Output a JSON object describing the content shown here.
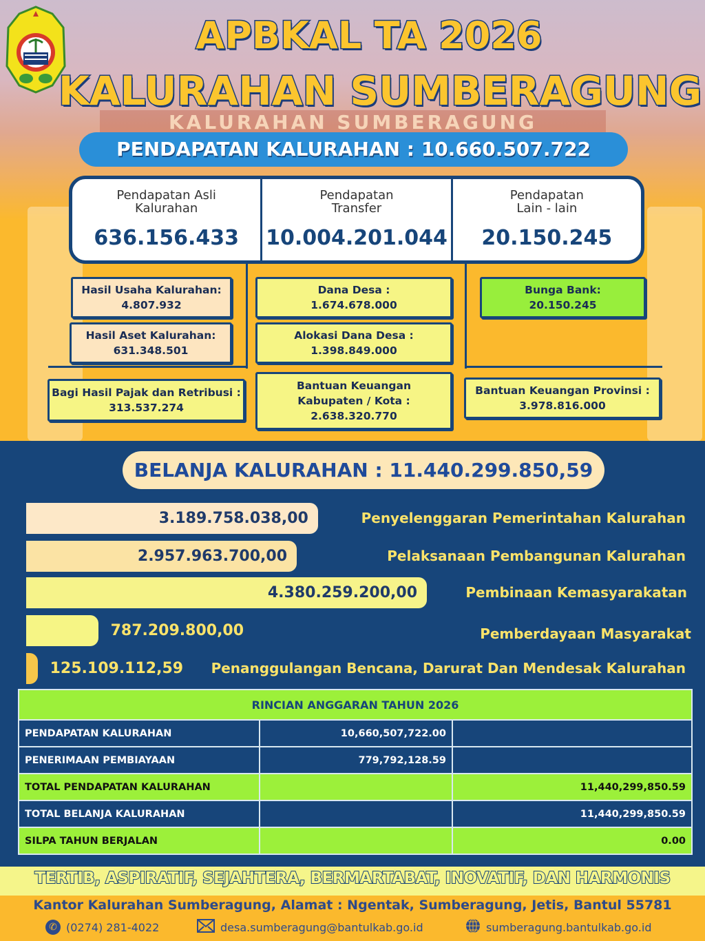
{
  "header": {
    "title_line1": "APBKAL TA 2026",
    "title_line2": "KALURAHAN SUMBERAGUNG",
    "building_sign": "KALURAHAN SUMBERAGUNG"
  },
  "pendapatan": {
    "total_label": "PENDAPATAN KALURAHAN : 10.660.507.722",
    "categories": [
      {
        "label": "Pendapatan Asli\nKalurahan",
        "value": "636.156.433"
      },
      {
        "label": "Pendapatan\nTransfer",
        "value": "10.004.201.044"
      },
      {
        "label": "Pendapatan\nLain - lain",
        "value": "20.150.245"
      }
    ],
    "details": [
      {
        "label": "Hasil Usaha Kalurahan:",
        "value": "4.807.932"
      },
      {
        "label": "Hasil Aset Kalurahan:",
        "value": "631.348.501"
      },
      {
        "label": "Bagi Hasil Pajak dan Retribusi :",
        "value": "313.537.274"
      },
      {
        "label": "Dana Desa :",
        "value": "1.674.678.000"
      },
      {
        "label": "Alokasi Dana Desa :",
        "value": "1.398.849.000"
      },
      {
        "label": "Bantuan Keuangan Kabupaten / Kota :",
        "value": "2.638.320.770"
      },
      {
        "label": "Bunga Bank:",
        "value": "20.150.245"
      },
      {
        "label": "Bantuan Keuangan Provinsi :",
        "value": "3.978.816.000"
      }
    ]
  },
  "belanja": {
    "total_label": "BELANJA KALURAHAN : 11.440.299.850,59",
    "items": [
      {
        "label": "Penyelenggaran Pemerintahan Kalurahan",
        "value_text": "3.189.758.038,00",
        "value": 3189758038.0,
        "color": "#fde8c8"
      },
      {
        "label": "Pelaksanaan Pembangunan Kalurahan",
        "value_text": "2.957.963.700,00",
        "value": 2957963700.0,
        "color": "#fbe3a4"
      },
      {
        "label": "Pembinaan Kemasyarakatan",
        "value_text": "4.380.259.200,00",
        "value": 4380259200.0,
        "color": "#f6f38a"
      },
      {
        "label": "Pemberdayaan Masyarakat",
        "value_text": "787.209.800,00",
        "value": 787209800.0,
        "color": "#f6f585"
      },
      {
        "label": "Penanggulangan Bencana, Darurat Dan Mendesak Kalurahan",
        "value_text": "125.109.112,59",
        "value": 125109112.59,
        "color": "#f7c64a"
      }
    ]
  },
  "table": {
    "title": "RINCIAN ANGGARAN TAHUN 2026",
    "rows": [
      {
        "label": "PENDAPATAN KALURAHAN",
        "col2": "10,660,507,722.00",
        "col3": ""
      },
      {
        "label": "PENERIMAAN PEMBIAYAAN",
        "col2": "779,792,128.59",
        "col3": ""
      },
      {
        "label": "TOTAL PENDAPATAN KALURAHAN",
        "col2": "",
        "col3": "11,440,299,850.59"
      },
      {
        "label": "TOTAL BELANJA KALURAHAN",
        "col2": "",
        "col3": "11,440,299,850.59"
      },
      {
        "label": "SILPA TAHUN BERJALAN",
        "col2": "",
        "col3": "0.00"
      }
    ]
  },
  "footer": {
    "tagline": "TERTIB, ASPIRATIF, SEJAHTERA, BERMARTABAT, INOVATIF, DAN HARMONIS",
    "address": "Kantor Kalurahan Sumberagung, Alamat : Ngentak, Sumberagung, Jetis, Bantul 55781",
    "phone": "(0274) 281-4022",
    "email": "desa.sumberagung@bantulkab.go.id",
    "website": "sumberagung.bantulkab.go.id"
  },
  "colors": {
    "navy": "#17457a",
    "orange": "#fbb92d",
    "green": "#9cf03a",
    "blue_pill": "#2a8fd8"
  }
}
